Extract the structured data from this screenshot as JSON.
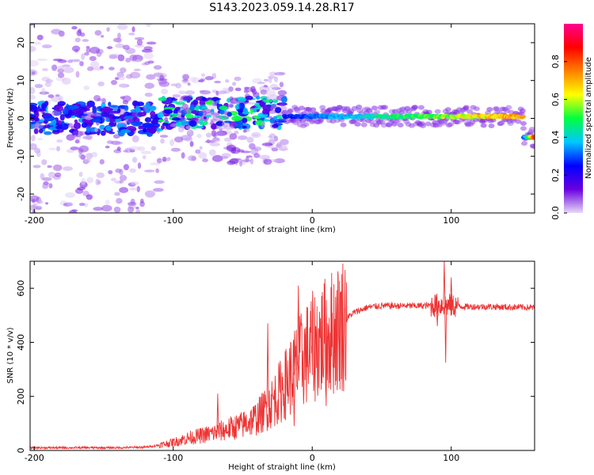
{
  "title": "S143.2023.059.14.28.R17",
  "chart_data": [
    {
      "type": "heatmap",
      "xlabel": "Height of straight line (km)",
      "ylabel": "Frequency (Hz)",
      "xlim": [
        -203,
        160
      ],
      "ylim": [
        -25,
        25
      ],
      "xticks": [
        -200,
        -100,
        0,
        100
      ],
      "yticks": [
        -20,
        -10,
        0,
        10,
        20
      ],
      "colorbar": {
        "label": "Normalized spectral amplitude",
        "range": [
          0,
          1
        ],
        "ticks": [
          0.0,
          0.2,
          0.4,
          0.6,
          0.8
        ],
        "tick_labels": [
          "0.0",
          "0.2",
          "0.4",
          "0.6",
          "0.8"
        ],
        "colormap": [
          "#e6d9f7",
          "#6a00e0",
          "#0000ff",
          "#00c8ff",
          "#00ff40",
          "#ffff00",
          "#ff8000",
          "#ff0000",
          "#ff0090"
        ]
      },
      "tone": {
        "segments": [
          {
            "x_start": -20,
            "x_end": 152,
            "freq": 0.5,
            "amplitude": 0.8
          },
          {
            "x_start": 152,
            "x_end": 160,
            "freq": -5.0,
            "amplitude": 0.9
          }
        ]
      },
      "regions": [
        {
          "x_start": -203,
          "x_end": -110,
          "freq_center": 0.0,
          "freq_spread": 25,
          "amplitude": 0.2,
          "description_code": "scattered"
        },
        {
          "x_start": -110,
          "x_end": -20,
          "freq_center": 1.5,
          "freq_spread": 12,
          "amplitude": 0.35,
          "description_code": "mixed"
        }
      ]
    },
    {
      "type": "line",
      "xlabel": "Height of straight line (km)",
      "ylabel": "SNR (10 * v/v)",
      "xlim": [
        -203,
        160
      ],
      "ylim": [
        0,
        700
      ],
      "xticks": [
        -200,
        -100,
        0,
        100
      ],
      "yticks": [
        0,
        200,
        400,
        600
      ],
      "color": "#ee3333",
      "x": [
        -203,
        -180,
        -160,
        -140,
        -120,
        -110,
        -100,
        -90,
        -80,
        -70,
        -60,
        -50,
        -40,
        -30,
        -20,
        -15,
        -10,
        -5,
        0,
        5,
        10,
        20,
        25,
        30,
        40,
        50,
        60,
        70,
        80,
        90,
        95,
        100,
        105,
        110,
        120,
        130,
        140,
        150,
        160
      ],
      "y": [
        10,
        10,
        10,
        10,
        12,
        20,
        30,
        45,
        55,
        65,
        80,
        95,
        120,
        170,
        240,
        280,
        320,
        350,
        380,
        400,
        420,
        460,
        490,
        510,
        530,
        535,
        535,
        535,
        535,
        538,
        540,
        535,
        535,
        532,
        532,
        532,
        530,
        530,
        528
      ],
      "spikes": [
        {
          "x": -68,
          "y": 210
        },
        {
          "x": -32,
          "y": 470
        },
        {
          "x": -10,
          "y": 610
        },
        {
          "x": -13,
          "y": 90
        },
        {
          "x": 10,
          "y": 165
        },
        {
          "x": 95,
          "y": 700
        },
        {
          "x": 96,
          "y": 325
        },
        {
          "x": 100,
          "y": 640
        },
        {
          "x": 90,
          "y": 460
        }
      ]
    }
  ]
}
